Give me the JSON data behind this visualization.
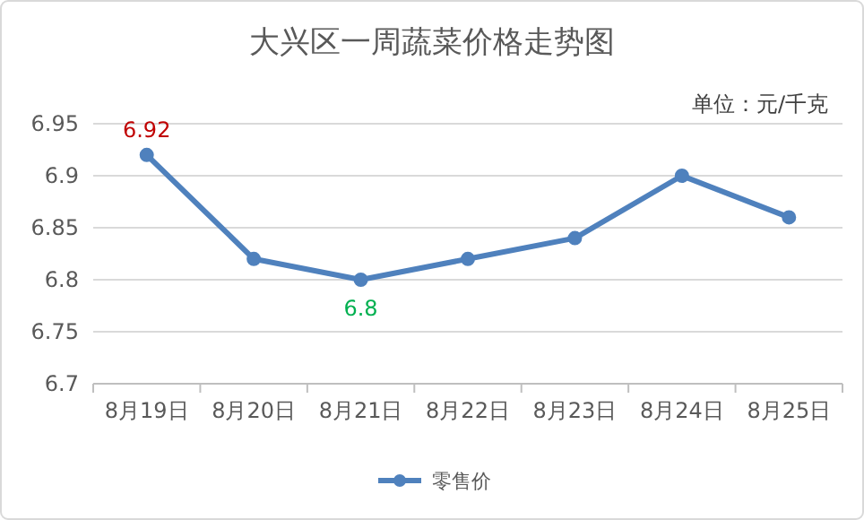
{
  "chart_data": {
    "type": "line",
    "title": "大兴区一周蔬菜价格走势图",
    "annotations": [
      "单位：元/千克"
    ],
    "categories": [
      "8月19日",
      "8月20日",
      "8月21日",
      "8月22日",
      "8月23日",
      "8月24日",
      "8月25日"
    ],
    "series": [
      {
        "name": "零售价",
        "color": "#4f81bd",
        "values": [
          6.92,
          6.82,
          6.8,
          6.82,
          6.84,
          6.9,
          6.86
        ],
        "value_labels": [
          "6.92",
          null,
          "6.8",
          null,
          null,
          null,
          null
        ]
      }
    ],
    "ylim": [
      6.7,
      6.95
    ],
    "yticks": [
      6.7,
      6.75,
      6.8,
      6.85,
      6.9,
      6.95
    ],
    "grid": "y",
    "legend": "bottom",
    "marker": "circle",
    "line_style": "solid"
  }
}
